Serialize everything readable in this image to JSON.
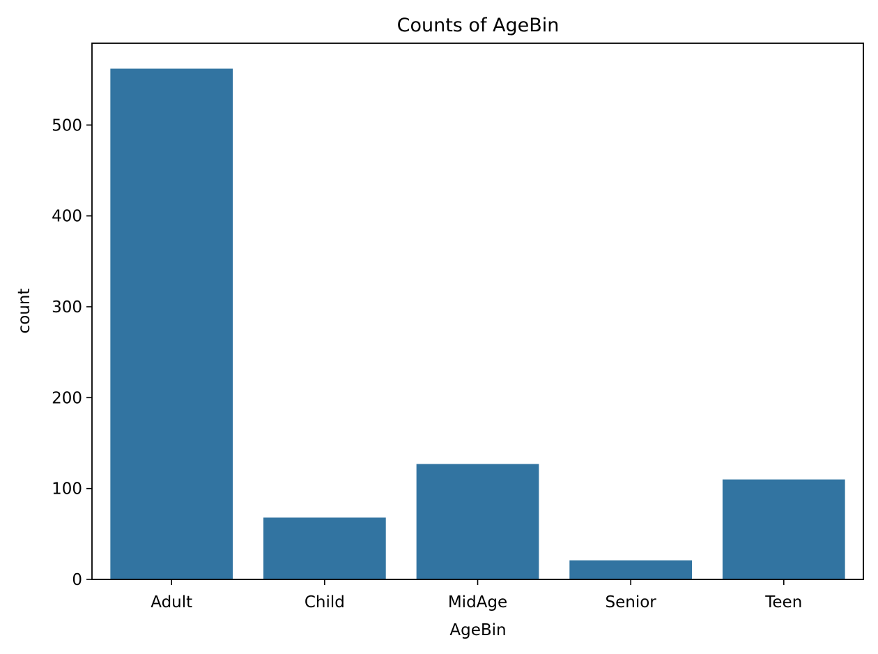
{
  "chart_data": {
    "type": "bar",
    "title": "Counts of AgeBin",
    "xlabel": "AgeBin",
    "ylabel": "count",
    "categories": [
      "Adult",
      "Child",
      "MidAge",
      "Senior",
      "Teen"
    ],
    "values": [
      562,
      68,
      127,
      21,
      110
    ],
    "ylim": [
      0,
      590
    ],
    "yticks": [
      0,
      100,
      200,
      300,
      400,
      500
    ],
    "bar_color": "#3274a1",
    "grid": false,
    "legend": "none"
  }
}
